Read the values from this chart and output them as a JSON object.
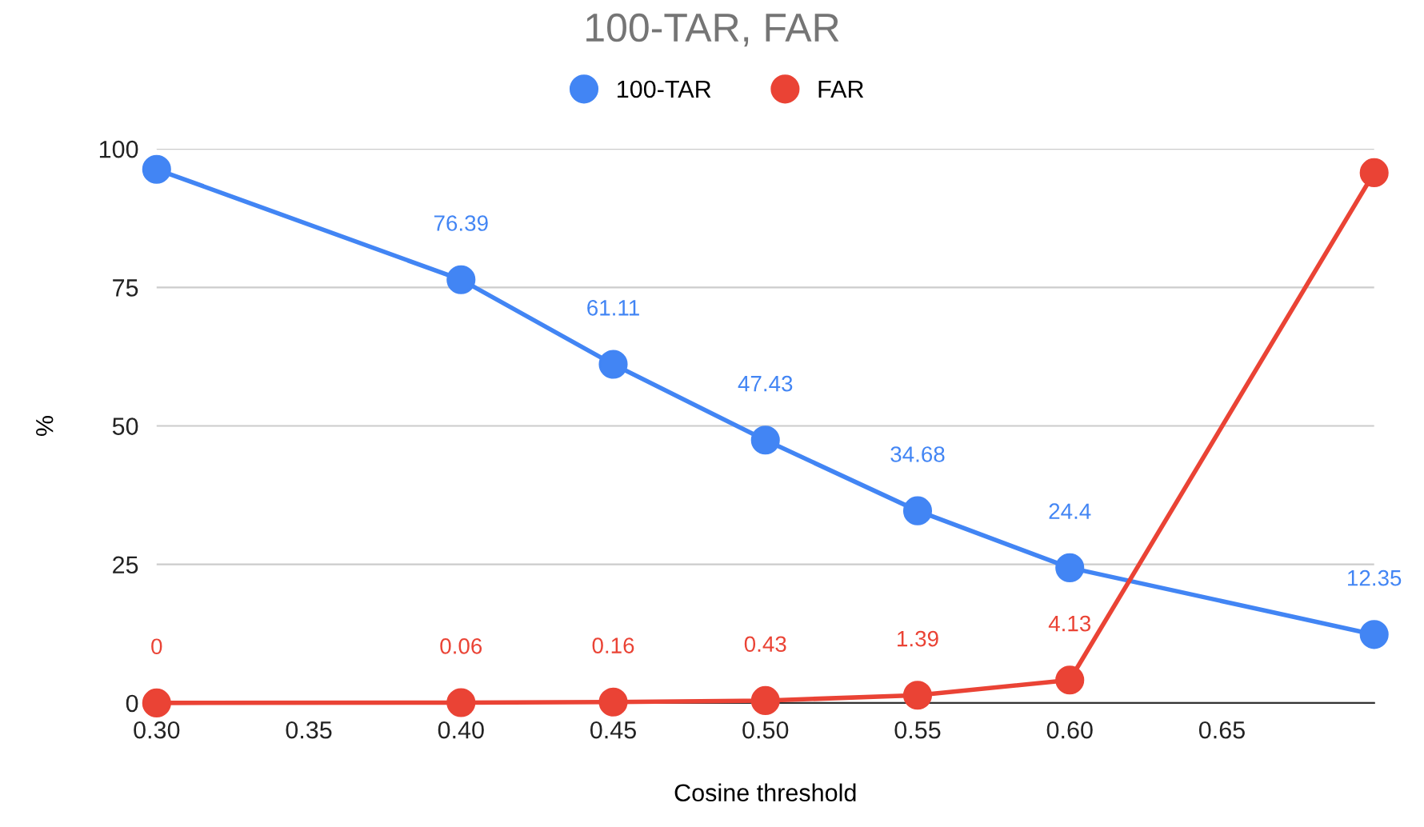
{
  "chart_data": {
    "type": "line",
    "title": "100-TAR, FAR",
    "xlabel": "Cosine threshold",
    "ylabel": "%",
    "x": [
      0.3,
      0.4,
      0.45,
      0.5,
      0.55,
      0.6,
      0.7
    ],
    "series": [
      {
        "name": "100-TAR",
        "color": "#4285f4",
        "values": [
          96.3,
          76.39,
          61.11,
          47.43,
          34.68,
          24.4,
          12.35
        ],
        "value_labels": [
          null,
          "76.39",
          "61.11",
          "47.43",
          "34.68",
          "24.4",
          "12.35"
        ]
      },
      {
        "name": "FAR",
        "color": "#ea4335",
        "values": [
          0,
          0.06,
          0.16,
          0.43,
          1.39,
          4.13,
          95.7
        ],
        "value_labels": [
          "0",
          "0.06",
          "0.16",
          "0.43",
          "1.39",
          "4.13",
          null
        ]
      }
    ],
    "xlim": [
      0.3,
      0.7
    ],
    "xticks": [
      {
        "value": 0.3,
        "label": "0.30"
      },
      0.35,
      {
        "value": 0.4,
        "label": "0.40"
      },
      0.45,
      {
        "value": 0.5,
        "label": "0.50"
      },
      0.55,
      {
        "value": 0.6,
        "label": "0.60"
      },
      0.65
    ],
    "ylim": [
      0,
      100
    ],
    "yticks": [
      0,
      25,
      50,
      75,
      100
    ],
    "grid": "y",
    "legend": "top",
    "marker": "circle",
    "line_style": "solid"
  }
}
